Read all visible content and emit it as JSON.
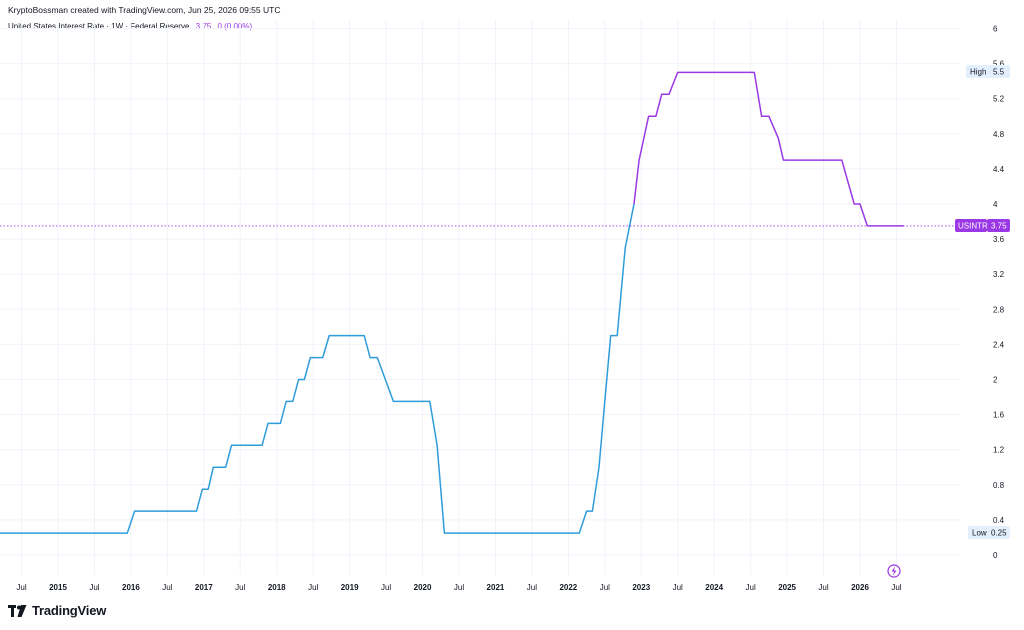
{
  "header": {
    "credit": "KryptoBossman created with TradingView.com, Jun 25, 2026 09:55 UTC",
    "legend_title": "United States Interest Rate · 1W · Federal Reserve",
    "legend_value": "3.75",
    "legend_change": "0 (0.00%)"
  },
  "brand": {
    "logo_text": "TradingView"
  },
  "markers": {
    "high_label": "High",
    "high_value": "5.5",
    "low_label": "Low",
    "low_value": "0.25",
    "symbol": "USINTR",
    "last_value": "3.75"
  },
  "colors": {
    "line_early": "#2e9cdb",
    "line_late": "#9b38e6",
    "grid": "#f0f3fa",
    "axis_text": "#131722"
  },
  "chart_data": {
    "type": "line",
    "title": "",
    "xlabel": "",
    "ylabel": "",
    "ylim": [
      -0.1,
      6.1
    ],
    "y_ticks": [
      "0",
      "0.4",
      "0.8",
      "1.2",
      "1.6",
      "2",
      "2.4",
      "2.8",
      "3.2",
      "3.6",
      "4",
      "4.4",
      "4.8",
      "5.2",
      "5.6",
      "6"
    ],
    "x_ticks": [
      {
        "t": 2014.5,
        "label": "Jul",
        "bold": false
      },
      {
        "t": 2015.0,
        "label": "2015",
        "bold": true
      },
      {
        "t": 2015.5,
        "label": "Jul",
        "bold": false
      },
      {
        "t": 2016.0,
        "label": "2016",
        "bold": true
      },
      {
        "t": 2016.5,
        "label": "Jul",
        "bold": false
      },
      {
        "t": 2017.0,
        "label": "2017",
        "bold": true
      },
      {
        "t": 2017.5,
        "label": "Jul",
        "bold": false
      },
      {
        "t": 2018.0,
        "label": "2018",
        "bold": true
      },
      {
        "t": 2018.5,
        "label": "Jul",
        "bold": false
      },
      {
        "t": 2019.0,
        "label": "2019",
        "bold": true
      },
      {
        "t": 2019.5,
        "label": "Jul",
        "bold": false
      },
      {
        "t": 2020.0,
        "label": "2020",
        "bold": true
      },
      {
        "t": 2020.5,
        "label": "Jul",
        "bold": false
      },
      {
        "t": 2021.0,
        "label": "2021",
        "bold": true
      },
      {
        "t": 2021.5,
        "label": "Jul",
        "bold": false
      },
      {
        "t": 2022.0,
        "label": "2022",
        "bold": true
      },
      {
        "t": 2022.5,
        "label": "Jul",
        "bold": false
      },
      {
        "t": 2023.0,
        "label": "2023",
        "bold": true
      },
      {
        "t": 2023.5,
        "label": "Jul",
        "bold": false
      },
      {
        "t": 2024.0,
        "label": "2024",
        "bold": true
      },
      {
        "t": 2024.5,
        "label": "Jul",
        "bold": false
      },
      {
        "t": 2025.0,
        "label": "2025",
        "bold": true
      },
      {
        "t": 2025.5,
        "label": "Jul",
        "bold": false
      },
      {
        "t": 2026.0,
        "label": "2026",
        "bold": true
      },
      {
        "t": 2026.5,
        "label": "Jul",
        "bold": false
      }
    ],
    "x_range": [
      2014.07,
      2027.0
    ],
    "series": [
      {
        "values": [
          [
            2014.07,
            0.25
          ],
          [
            2015.95,
            0.25
          ],
          [
            2016.05,
            0.5
          ],
          [
            2016.9,
            0.5
          ],
          [
            2016.98,
            0.75
          ],
          [
            2017.06,
            0.75
          ],
          [
            2017.13,
            1.0
          ],
          [
            2017.3,
            1.0
          ],
          [
            2017.38,
            1.25
          ],
          [
            2017.8,
            1.25
          ],
          [
            2017.88,
            1.5
          ],
          [
            2018.05,
            1.5
          ],
          [
            2018.13,
            1.75
          ],
          [
            2018.22,
            1.75
          ],
          [
            2018.3,
            2.0
          ],
          [
            2018.38,
            2.0
          ],
          [
            2018.46,
            2.25
          ],
          [
            2018.63,
            2.25
          ],
          [
            2018.72,
            2.5
          ],
          [
            2019.2,
            2.5
          ],
          [
            2019.28,
            2.25
          ],
          [
            2019.38,
            2.25
          ],
          [
            2019.6,
            1.75
          ],
          [
            2020.1,
            1.75
          ],
          [
            2020.2,
            1.25
          ],
          [
            2020.3,
            0.25
          ],
          [
            2022.15,
            0.25
          ],
          [
            2022.25,
            0.5
          ],
          [
            2022.33,
            0.5
          ],
          [
            2022.42,
            1.0
          ],
          [
            2022.5,
            1.75
          ],
          [
            2022.58,
            2.5
          ],
          [
            2022.67,
            2.5
          ],
          [
            2022.78,
            3.5
          ],
          [
            2022.9,
            4.0
          ]
        ]
      },
      {
        "values": [
          [
            2022.9,
            4.0
          ],
          [
            2022.97,
            4.5
          ],
          [
            2023.1,
            5.0
          ],
          [
            2023.2,
            5.0
          ],
          [
            2023.28,
            5.25
          ],
          [
            2023.38,
            5.25
          ],
          [
            2023.5,
            5.5
          ],
          [
            2024.55,
            5.5
          ],
          [
            2024.65,
            5.0
          ],
          [
            2024.75,
            5.0
          ],
          [
            2024.88,
            4.75
          ],
          [
            2024.95,
            4.5
          ],
          [
            2025.75,
            4.5
          ],
          [
            2025.92,
            4.0
          ],
          [
            2026.0,
            4.0
          ],
          [
            2026.1,
            3.75
          ],
          [
            2026.6,
            3.75
          ]
        ]
      }
    ],
    "grid": true,
    "legend_position": "top-left"
  }
}
